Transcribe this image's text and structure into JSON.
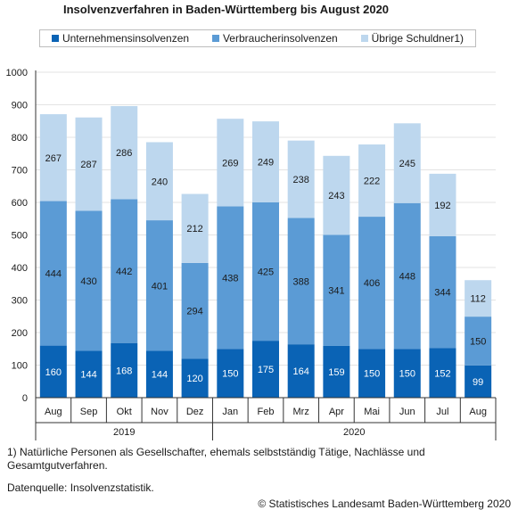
{
  "title": "Insolvenzverfahren in Baden-Württemberg bis August 2020",
  "footnote": "1) Natürliche Personen als Gesellschafter, ehemals selbstständig Tätige, Nachlässe und Gesamtgutverfahren.",
  "source": "Datenquelle: Insolvenzstatistik.",
  "copyright": "© Statistisches Landesamt Baden-Württemberg 2020",
  "chart_data": {
    "type": "bar",
    "stacked": true,
    "title": "Insolvenzverfahren in Baden-Württemberg bis August 2020",
    "categories": [
      "Aug",
      "Sep",
      "Okt",
      "Nov",
      "Dez",
      "Jan",
      "Feb",
      "Mrz",
      "Apr",
      "Mai",
      "Jun",
      "Jul",
      "Aug"
    ],
    "groups": [
      {
        "label": "2019",
        "start": 0,
        "end": 4
      },
      {
        "label": "2020",
        "start": 5,
        "end": 12
      }
    ],
    "series": [
      {
        "name": "Unternehmensinsolvenzen",
        "color": "#0a63b5",
        "values": [
          160,
          144,
          168,
          144,
          120,
          150,
          175,
          164,
          159,
          150,
          150,
          152,
          99
        ]
      },
      {
        "name": "Verbraucherinsolvenzen",
        "color": "#5b9bd5",
        "values": [
          444,
          430,
          442,
          401,
          294,
          438,
          425,
          388,
          341,
          406,
          448,
          344,
          150
        ]
      },
      {
        "name": "Übrige Schuldner1)",
        "color": "#bdd7ee",
        "values": [
          267,
          287,
          286,
          240,
          212,
          269,
          249,
          238,
          243,
          222,
          245,
          192,
          112
        ]
      }
    ],
    "ylim": [
      0,
      1000
    ],
    "yticks": [
      0,
      100,
      200,
      300,
      400,
      500,
      600,
      700,
      800,
      900,
      1000
    ],
    "grid": true,
    "legend_position": "top"
  }
}
